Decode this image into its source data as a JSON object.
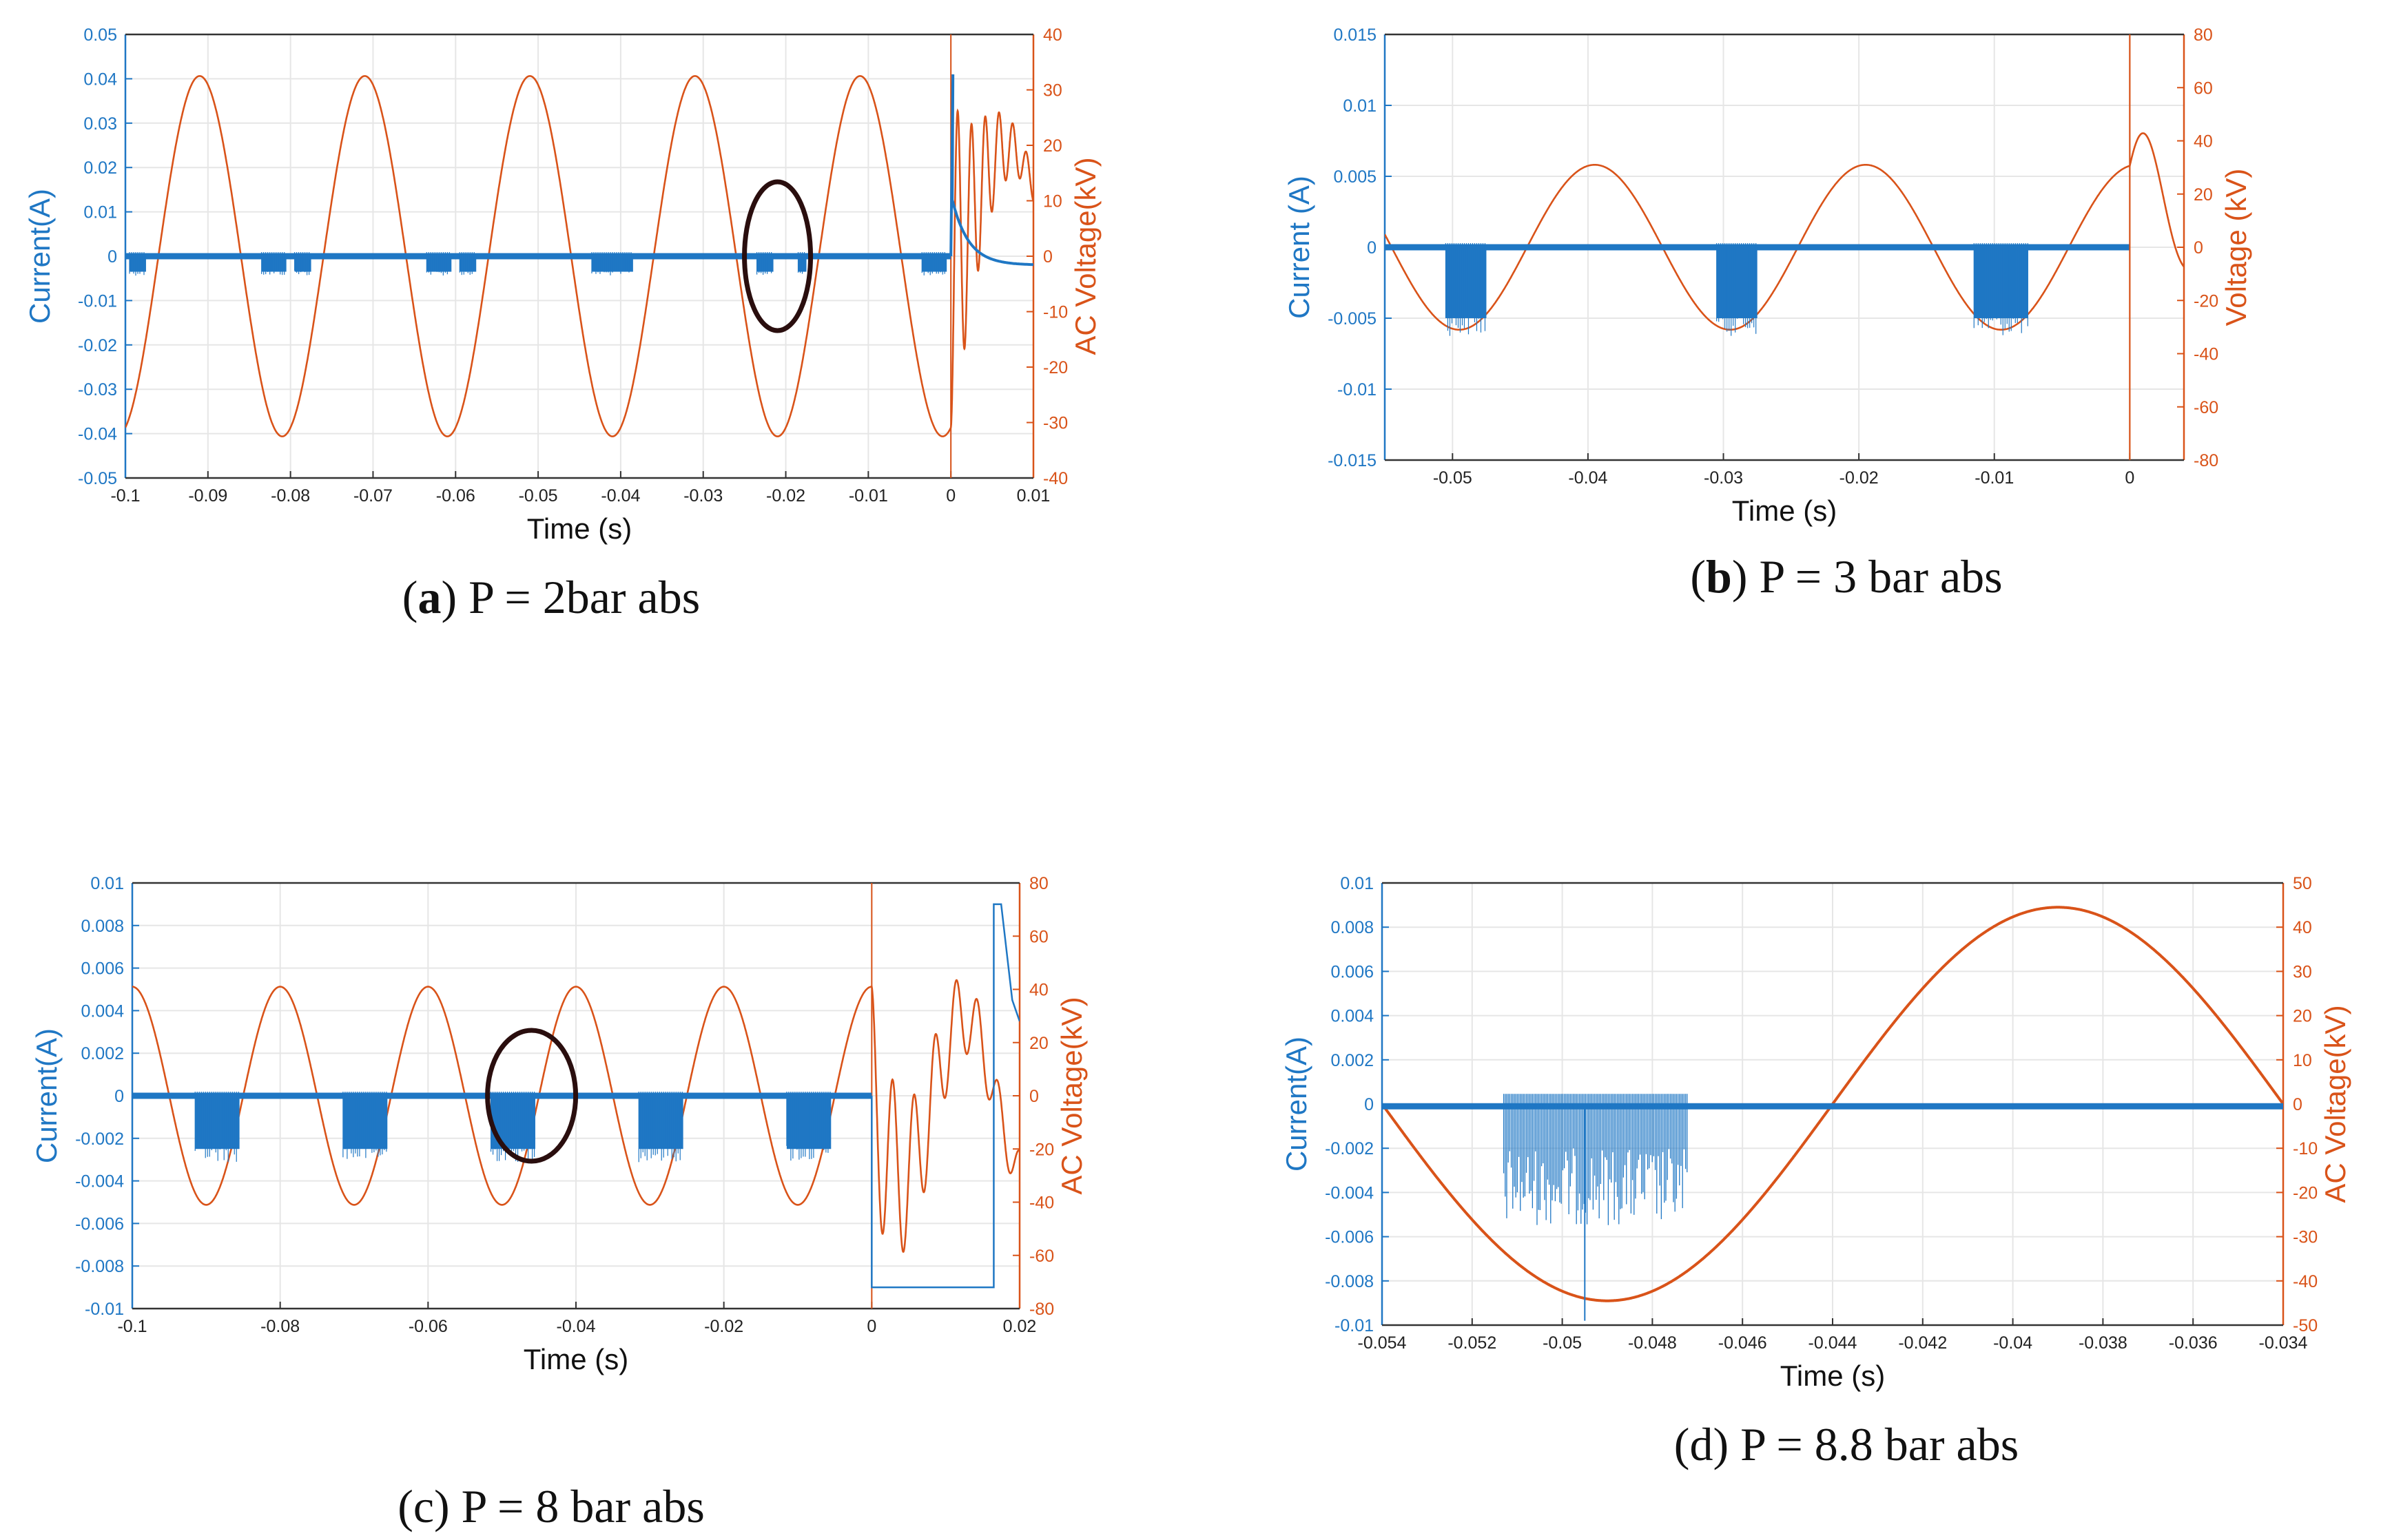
{
  "colors": {
    "current": "#1f77c4",
    "voltage": "#d95319",
    "grid": "#e6e6e6",
    "ellipse": "#2a0e0e"
  },
  "chart_data": [
    {
      "id": "a",
      "type": "line",
      "caption": {
        "letter": "a",
        "pre": "(",
        "post": ") P = 2bar abs"
      },
      "xlabel": "Time (s)",
      "ylabel_left": "Current(A)",
      "ylabel_right": "AC Voltage(kV)",
      "xlim": [
        -0.1,
        0.01
      ],
      "ylim_left": [
        -0.05,
        0.05
      ],
      "ylim_right": [
        -40,
        40
      ],
      "xticks": [
        "-0.1",
        "-0.09",
        "-0.08",
        "-0.07",
        "-0.06",
        "-0.05",
        "-0.04",
        "-0.03",
        "-0.02",
        "-0.01",
        "0",
        "0.01"
      ],
      "yticks_left": [
        "-0.05",
        "-0.04",
        "-0.03",
        "-0.02",
        "-0.01",
        "0",
        "0.01",
        "0.02",
        "0.03",
        "0.04",
        "0.05"
      ],
      "yticks_right": [
        "-40",
        "-30",
        "-20",
        "-10",
        "0",
        "10",
        "20",
        "30",
        "40"
      ],
      "series": [
        {
          "name": "AC Voltage",
          "axis": "right",
          "kind": "sine",
          "amplitude_kV": 32.5,
          "frequency_Hz": 50,
          "peak_time_s": -0.091,
          "t_end_s": 0.0,
          "tail": "damped oscillation after breakdown"
        },
        {
          "name": "Current",
          "axis": "left",
          "baseline_A": 0.0,
          "pd_burst_depth_A": -0.0035,
          "pd_bursts_s": [
            [
              -0.0995,
              -0.0975
            ],
            [
              -0.0835,
              -0.0805
            ],
            [
              -0.0795,
              -0.0775
            ],
            [
              -0.0635,
              -0.0605
            ],
            [
              -0.0595,
              -0.0575
            ],
            [
              -0.0435,
              -0.0385
            ],
            [
              -0.0235,
              -0.0215
            ],
            [
              -0.0185,
              -0.0175
            ],
            [
              -0.0035,
              -0.0005
            ]
          ],
          "breakdown_time_s": 0.0,
          "breakdown_peak_A": 0.041
        }
      ],
      "annotation": {
        "type": "ellipse",
        "center": [
          -0.021,
          0.0
        ],
        "note": "highlighted PD burst"
      }
    },
    {
      "id": "b",
      "type": "line",
      "caption": {
        "letter": "b",
        "pre": "(",
        "post": ") P = 3 bar abs"
      },
      "xlabel": "Time (s)",
      "ylabel_left": "Current (A)",
      "ylabel_right": "Voltage (kV)",
      "xlim": [
        -0.055,
        0.004
      ],
      "ylim_left": [
        -0.015,
        0.015
      ],
      "ylim_right": [
        -80,
        80
      ],
      "xticks": [
        "-0.05",
        "-0.04",
        "-0.03",
        "-0.02",
        "-0.01",
        "0"
      ],
      "yticks_left": [
        "-0.015",
        "-0.01",
        "-0.005",
        "0",
        "0.005",
        "0.01",
        "0.015"
      ],
      "yticks_right": [
        "-80",
        "-60",
        "-40",
        "-20",
        "0",
        "20",
        "40",
        "60",
        "80"
      ],
      "series": [
        {
          "name": "Voltage",
          "axis": "right",
          "kind": "sine",
          "amplitude_kV": 31,
          "frequency_Hz": 50,
          "peak_time_s": -0.0395,
          "t_end_s": 0.0
        },
        {
          "name": "Current",
          "axis": "left",
          "baseline_A": 0.0,
          "pd_burst_depth_A": -0.005,
          "pd_bursts_s": [
            [
              -0.0505,
              -0.0475
            ],
            [
              -0.0305,
              -0.0275
            ],
            [
              -0.0115,
              -0.0075
            ]
          ],
          "breakdown_time_s": 0.0
        }
      ]
    },
    {
      "id": "c",
      "type": "line",
      "caption": {
        "letter": "c",
        "pre": "(",
        "post": ") P = 8 bar abs",
        "bold": false
      },
      "xlabel": "Time (s)",
      "ylabel_left": "Current(A)",
      "ylabel_right": "AC Voltage(kV)",
      "xlim": [
        -0.1,
        0.02
      ],
      "ylim_left": [
        -0.01,
        0.01
      ],
      "ylim_right": [
        -80,
        80
      ],
      "xticks": [
        "-0.1",
        "-0.08",
        "-0.06",
        "-0.04",
        "-0.02",
        "0",
        "0.02"
      ],
      "yticks_left": [
        "-0.01",
        "-0.008",
        "-0.006",
        "-0.004",
        "-0.002",
        "0",
        "0.002",
        "0.004",
        "0.006",
        "0.008",
        "0.01"
      ],
      "yticks_right": [
        "-80",
        "-60",
        "-40",
        "-20",
        "0",
        "20",
        "40",
        "60",
        "80"
      ],
      "series": [
        {
          "name": "AC Voltage",
          "axis": "right",
          "kind": "sine",
          "amplitude_kV": 41,
          "frequency_Hz": 50,
          "peak_time_s": -0.1,
          "t_end_s": 0.0,
          "tail": "damped oscillation after breakdown"
        },
        {
          "name": "Current",
          "axis": "left",
          "baseline_A": 0.0,
          "pd_burst_depth_A": -0.0025,
          "pd_bursts_s": [
            [
              -0.0915,
              -0.0855
            ],
            [
              -0.0715,
              -0.0655
            ],
            [
              -0.0515,
              -0.0455
            ],
            [
              -0.0315,
              -0.0255
            ],
            [
              -0.0115,
              -0.0055
            ]
          ],
          "breakdown_time_s": 0.0,
          "saturation_A": -0.009,
          "recovery_peak_A": 0.009
        }
      ],
      "annotation": {
        "type": "ellipse",
        "center": [
          -0.046,
          0.0
        ],
        "note": "highlighted PD burst"
      }
    },
    {
      "id": "d",
      "type": "line",
      "caption": {
        "letter": "d",
        "pre": "(d) P = 8.8 bar abs",
        "post": ""
      },
      "xlabel": "Time (s)",
      "ylabel_left": "Current(A)",
      "ylabel_right": "AC Voltage(kV)",
      "xlim": [
        -0.054,
        -0.034
      ],
      "ylim_left": [
        -0.01,
        0.01
      ],
      "ylim_right": [
        -50,
        50
      ],
      "xticks": [
        "-0.054",
        "-0.052",
        "-0.05",
        "-0.048",
        "-0.046",
        "-0.044",
        "-0.042",
        "-0.04",
        "-0.038",
        "-0.036",
        "-0.034"
      ],
      "yticks_left": [
        "-0.01",
        "-0.008",
        "-0.006",
        "-0.004",
        "-0.002",
        "0",
        "0.002",
        "0.004",
        "0.006",
        "0.008",
        "0.01"
      ],
      "yticks_right": [
        "-50",
        "-40",
        "-30",
        "-20",
        "-10",
        "0",
        "10",
        "20",
        "30",
        "40",
        "50"
      ],
      "series": [
        {
          "name": "AC Voltage",
          "axis": "right",
          "kind": "sine",
          "amplitude_kV": 44.5,
          "frequency_Hz": 50,
          "peak_time_s": -0.039
        },
        {
          "name": "Current",
          "axis": "left",
          "baseline_A": -0.0001,
          "pd_burst_depth_A": -0.0055,
          "pd_bursts_s": [
            [
              -0.0513,
              -0.0472
            ]
          ],
          "max_spike_A": -0.0098,
          "max_spike_time_s": -0.0495
        }
      ]
    }
  ]
}
